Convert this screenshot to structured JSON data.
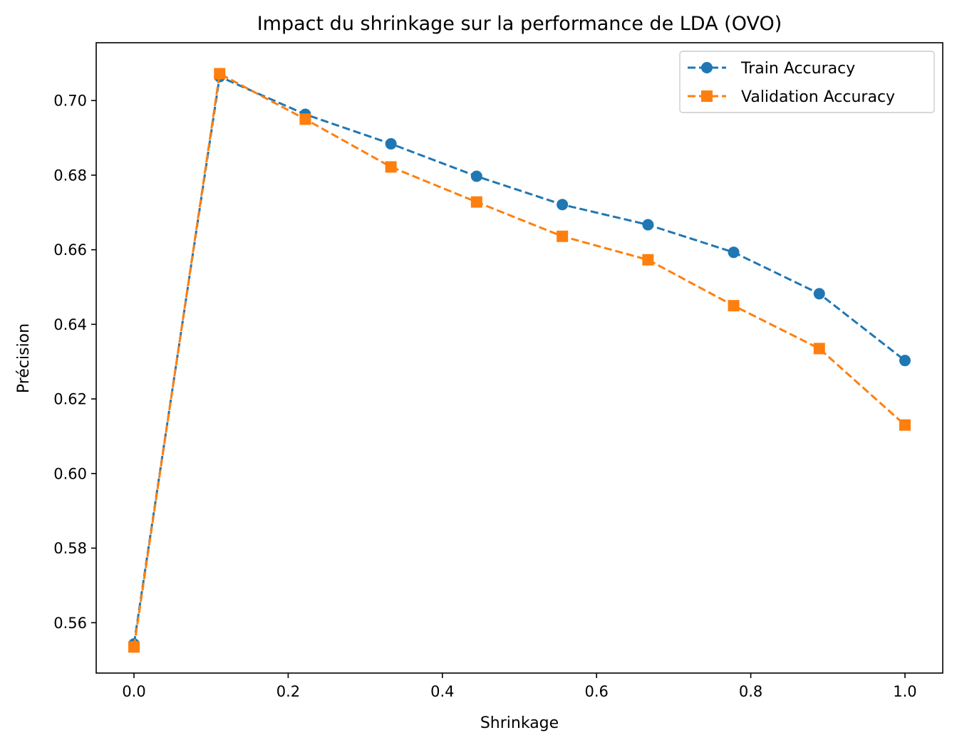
{
  "chart_data": {
    "type": "line",
    "title": "Impact du shrinkage sur la performance de LDA (OVO)",
    "xlabel": "Shrinkage",
    "ylabel": "Précision",
    "xlim": [
      -0.049,
      1.049
    ],
    "ylim": [
      0.5465,
      0.7155
    ],
    "xticks": [
      0.0,
      0.2,
      0.4,
      0.6,
      0.8,
      1.0
    ],
    "xtick_labels": [
      "0.0",
      "0.2",
      "0.4",
      "0.6",
      "0.8",
      "1.0"
    ],
    "yticks": [
      0.56,
      0.58,
      0.6,
      0.62,
      0.64,
      0.66,
      0.68,
      0.7
    ],
    "ytick_labels": [
      "0.56",
      "0.58",
      "0.60",
      "0.62",
      "0.64",
      "0.66",
      "0.68",
      "0.70"
    ],
    "grid": false,
    "legend_position": "top-right",
    "x": [
      0.0,
      0.1111,
      0.2222,
      0.3333,
      0.4444,
      0.5556,
      0.6667,
      0.7778,
      0.8889,
      1.0
    ],
    "series": [
      {
        "name": "Train Accuracy",
        "color": "#1f77b4",
        "marker": "circle",
        "linestyle": "dashed",
        "values": [
          0.5543,
          0.7064,
          0.6963,
          0.6884,
          0.6797,
          0.6721,
          0.6667,
          0.6593,
          0.6482,
          0.6303
        ]
      },
      {
        "name": "Validation Accuracy",
        "color": "#ff7f0e",
        "marker": "square",
        "linestyle": "dashed",
        "values": [
          0.5535,
          0.7072,
          0.695,
          0.6822,
          0.6728,
          0.6636,
          0.6573,
          0.645,
          0.6335,
          0.613
        ]
      }
    ]
  }
}
